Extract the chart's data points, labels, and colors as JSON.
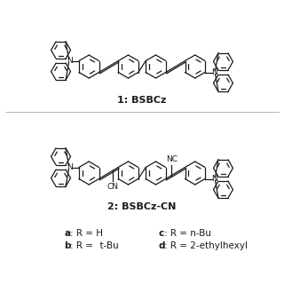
{
  "compound1_label": "1: BSBCz",
  "compound2_label": "2: BSBCz-CN",
  "label_a": "a",
  "label_b": "b",
  "label_c": "c",
  "label_d": "d",
  "text_a": ": R = H",
  "text_b": ": R =   t-Bu",
  "text_c": ": R = n-Bu",
  "text_d": ": R = 2-ethylhexyl",
  "bg_color": "#ffffff",
  "line_color": "#1a1a1a",
  "lw": 0.9
}
